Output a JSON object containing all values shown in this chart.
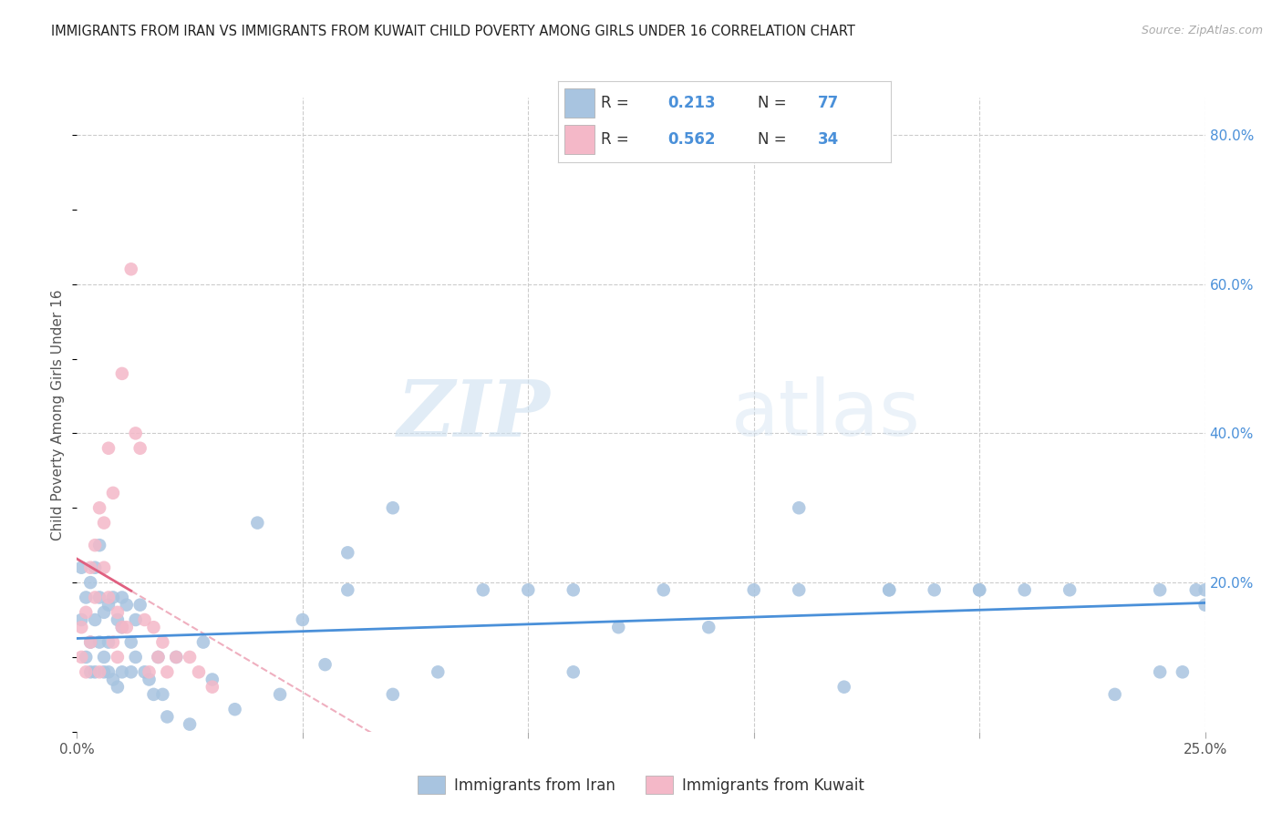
{
  "title": "IMMIGRANTS FROM IRAN VS IMMIGRANTS FROM KUWAIT CHILD POVERTY AMONG GIRLS UNDER 16 CORRELATION CHART",
  "source": "Source: ZipAtlas.com",
  "ylabel": "Child Poverty Among Girls Under 16",
  "xlim": [
    0.0,
    0.25
  ],
  "ylim": [
    0.0,
    0.85
  ],
  "legend_iran_R": "0.213",
  "legend_iran_N": "77",
  "legend_kuwait_R": "0.562",
  "legend_kuwait_N": "34",
  "color_iran": "#a8c4e0",
  "color_kuwait": "#f4b8c8",
  "line_color_iran": "#4a90d9",
  "line_color_kuwait": "#e06080",
  "watermark_zip": "ZIP",
  "watermark_atlas": "atlas",
  "iran_x": [
    0.001,
    0.001,
    0.002,
    0.002,
    0.003,
    0.003,
    0.003,
    0.004,
    0.004,
    0.004,
    0.005,
    0.005,
    0.005,
    0.006,
    0.006,
    0.006,
    0.007,
    0.007,
    0.007,
    0.008,
    0.008,
    0.009,
    0.009,
    0.01,
    0.01,
    0.01,
    0.011,
    0.012,
    0.012,
    0.013,
    0.013,
    0.014,
    0.015,
    0.016,
    0.017,
    0.018,
    0.019,
    0.02,
    0.022,
    0.025,
    0.028,
    0.03,
    0.035,
    0.04,
    0.045,
    0.05,
    0.055,
    0.06,
    0.07,
    0.08,
    0.09,
    0.1,
    0.11,
    0.12,
    0.13,
    0.14,
    0.15,
    0.16,
    0.17,
    0.18,
    0.19,
    0.2,
    0.21,
    0.22,
    0.23,
    0.24,
    0.245,
    0.248,
    0.25,
    0.06,
    0.07,
    0.11,
    0.16,
    0.18,
    0.2,
    0.24,
    0.25
  ],
  "iran_y": [
    0.22,
    0.15,
    0.18,
    0.1,
    0.2,
    0.12,
    0.08,
    0.22,
    0.15,
    0.08,
    0.25,
    0.18,
    0.12,
    0.16,
    0.1,
    0.08,
    0.17,
    0.12,
    0.08,
    0.18,
    0.07,
    0.15,
    0.06,
    0.14,
    0.08,
    0.18,
    0.17,
    0.12,
    0.08,
    0.15,
    0.1,
    0.17,
    0.08,
    0.07,
    0.05,
    0.1,
    0.05,
    0.02,
    0.1,
    0.01,
    0.12,
    0.07,
    0.03,
    0.28,
    0.05,
    0.15,
    0.09,
    0.24,
    0.05,
    0.08,
    0.19,
    0.19,
    0.08,
    0.14,
    0.19,
    0.14,
    0.19,
    0.3,
    0.06,
    0.19,
    0.19,
    0.19,
    0.19,
    0.19,
    0.05,
    0.19,
    0.08,
    0.19,
    0.17,
    0.19,
    0.3,
    0.19,
    0.19,
    0.19,
    0.19,
    0.08,
    0.19
  ],
  "kuwait_x": [
    0.001,
    0.001,
    0.002,
    0.002,
    0.003,
    0.003,
    0.004,
    0.004,
    0.005,
    0.005,
    0.006,
    0.006,
    0.007,
    0.007,
    0.008,
    0.008,
    0.009,
    0.009,
    0.01,
    0.01,
    0.011,
    0.012,
    0.013,
    0.014,
    0.015,
    0.016,
    0.017,
    0.018,
    0.019,
    0.02,
    0.022,
    0.025,
    0.027,
    0.03
  ],
  "kuwait_y": [
    0.1,
    0.14,
    0.16,
    0.08,
    0.22,
    0.12,
    0.18,
    0.25,
    0.3,
    0.08,
    0.28,
    0.22,
    0.38,
    0.18,
    0.32,
    0.12,
    0.1,
    0.16,
    0.48,
    0.14,
    0.14,
    0.62,
    0.4,
    0.38,
    0.15,
    0.08,
    0.14,
    0.1,
    0.12,
    0.08,
    0.1,
    0.1,
    0.08,
    0.06
  ]
}
